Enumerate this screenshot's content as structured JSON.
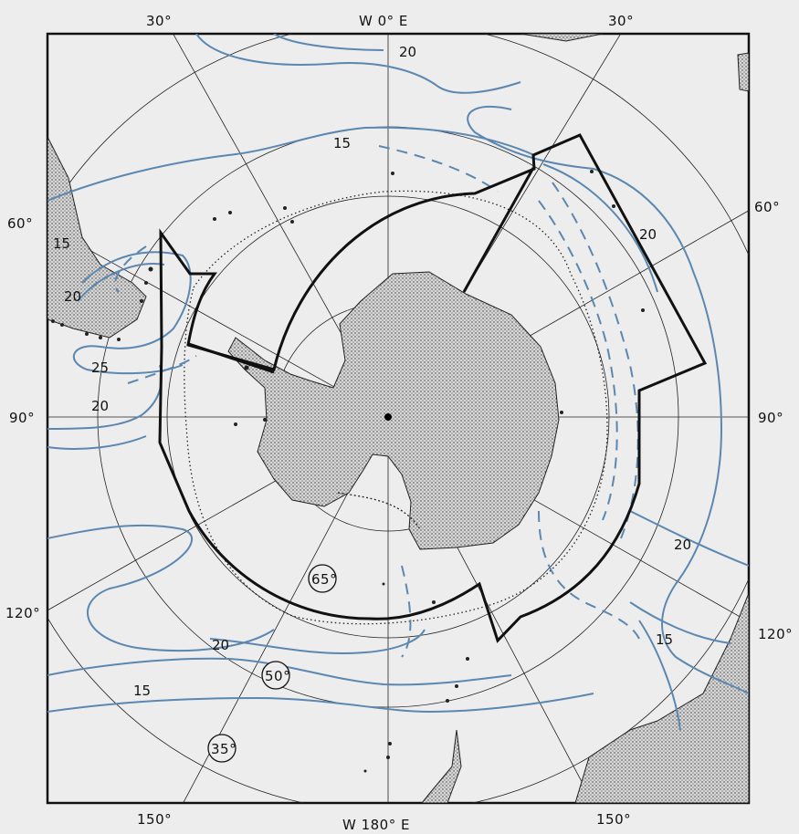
{
  "map": {
    "longitude_labels": {
      "top_left_30": "30°",
      "top_center": "W 0° E",
      "top_right_30": "30°",
      "left_60": "60°",
      "right_60": "60°",
      "left_90": "90°",
      "right_90": "90°",
      "left_120": "120°",
      "right_120": "120°",
      "bottom_left_150": "150°",
      "bottom_center": "W 180° E",
      "bottom_right_150": "150°"
    },
    "latitude_circle_labels": {
      "lat_65": "65°",
      "lat_50": "50°",
      "lat_35": "35°"
    },
    "contour_labels": {
      "c15_top": "15",
      "c20_top": "20",
      "c20_right": "20",
      "c15_left": "15",
      "c20_left": "20",
      "c25_left": "25",
      "c20_left_low": "20",
      "c20_lower_right": "20",
      "c15_lower_right": "15",
      "c20_bottom": "20",
      "c15_bottom": "15"
    },
    "colors": {
      "contour": "#5b87b0",
      "boundary": "#111111",
      "land": "#a9a9a9",
      "background": "#ededed"
    }
  }
}
